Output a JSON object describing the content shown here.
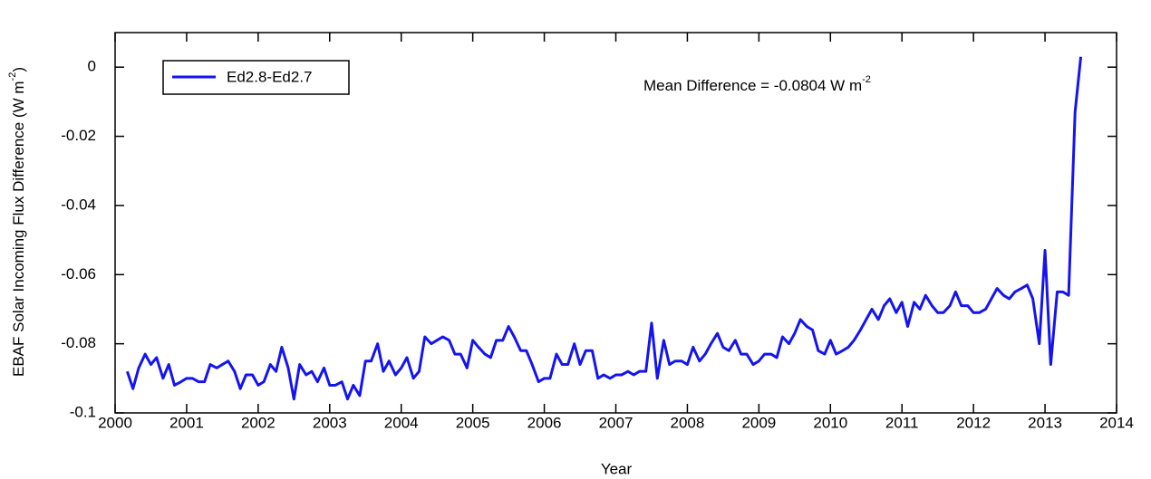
{
  "chart_data": {
    "type": "line",
    "x_label": "Year",
    "y_label": [
      "EBAF Solar Incoming Flux Difference (W m",
      "-2",
      ")"
    ],
    "annotation": [
      "Mean Difference = -0.0804 W m",
      "-2"
    ],
    "xlim": [
      2000,
      2014
    ],
    "xticks": [
      2000,
      2001,
      2002,
      2003,
      2004,
      2005,
      2006,
      2007,
      2008,
      2009,
      2010,
      2011,
      2012,
      2013,
      2014
    ],
    "ylim": [
      -0.1,
      0.01
    ],
    "yticks": [
      -0.1,
      -0.08,
      -0.06,
      -0.04,
      -0.02,
      0
    ],
    "legend": "upper left",
    "x": [
      2000.17,
      2000.25,
      2000.33,
      2000.42,
      2000.5,
      2000.58,
      2000.67,
      2000.75,
      2000.83,
      2000.92,
      2001,
      2001.08,
      2001.17,
      2001.25,
      2001.33,
      2001.42,
      2001.5,
      2001.58,
      2001.67,
      2001.75,
      2001.83,
      2001.92,
      2002,
      2002.08,
      2002.17,
      2002.25,
      2002.33,
      2002.42,
      2002.5,
      2002.58,
      2002.67,
      2002.75,
      2002.83,
      2002.92,
      2003,
      2003.08,
      2003.17,
      2003.25,
      2003.33,
      2003.42,
      2003.5,
      2003.58,
      2003.67,
      2003.75,
      2003.83,
      2003.92,
      2004,
      2004.08,
      2004.17,
      2004.25,
      2004.33,
      2004.42,
      2004.5,
      2004.58,
      2004.67,
      2004.75,
      2004.83,
      2004.92,
      2005,
      2005.08,
      2005.17,
      2005.25,
      2005.33,
      2005.42,
      2005.5,
      2005.58,
      2005.67,
      2005.75,
      2005.83,
      2005.92,
      2006,
      2006.08,
      2006.17,
      2006.25,
      2006.33,
      2006.42,
      2006.5,
      2006.58,
      2006.67,
      2006.75,
      2006.83,
      2006.92,
      2007,
      2007.08,
      2007.17,
      2007.25,
      2007.33,
      2007.42,
      2007.5,
      2007.58,
      2007.67,
      2007.75,
      2007.83,
      2007.92,
      2008,
      2008.08,
      2008.17,
      2008.25,
      2008.33,
      2008.42,
      2008.5,
      2008.58,
      2008.67,
      2008.75,
      2008.83,
      2008.92,
      2009,
      2009.08,
      2009.17,
      2009.25,
      2009.33,
      2009.42,
      2009.5,
      2009.58,
      2009.67,
      2009.75,
      2009.83,
      2009.92,
      2010,
      2010.08,
      2010.17,
      2010.25,
      2010.33,
      2010.42,
      2010.5,
      2010.58,
      2010.67,
      2010.75,
      2010.83,
      2010.92,
      2011,
      2011.08,
      2011.17,
      2011.25,
      2011.33,
      2011.42,
      2011.5,
      2011.58,
      2011.67,
      2011.75,
      2011.83,
      2011.92,
      2012,
      2012.08,
      2012.17,
      2012.25,
      2012.33,
      2012.42,
      2012.5,
      2012.58,
      2012.67,
      2012.75,
      2012.83,
      2012.92,
      2013,
      2013.08,
      2013.17,
      2013.25,
      2013.33,
      2013.42,
      2013.5
    ],
    "series": [
      {
        "name": "Ed2.8-Ed2.7",
        "color": "#1414f0",
        "values": [
          -0.088,
          -0.093,
          -0.087,
          -0.083,
          -0.086,
          -0.084,
          -0.09,
          -0.086,
          -0.092,
          -0.091,
          -0.09,
          -0.09,
          -0.091,
          -0.091,
          -0.086,
          -0.087,
          -0.086,
          -0.085,
          -0.088,
          -0.093,
          -0.089,
          -0.089,
          -0.092,
          -0.091,
          -0.086,
          -0.088,
          -0.081,
          -0.087,
          -0.096,
          -0.086,
          -0.089,
          -0.088,
          -0.091,
          -0.087,
          -0.092,
          -0.092,
          -0.091,
          -0.096,
          -0.092,
          -0.095,
          -0.085,
          -0.085,
          -0.08,
          -0.088,
          -0.085,
          -0.089,
          -0.087,
          -0.084,
          -0.09,
          -0.088,
          -0.078,
          -0.08,
          -0.079,
          -0.078,
          -0.079,
          -0.083,
          -0.083,
          -0.087,
          -0.079,
          -0.081,
          -0.083,
          -0.084,
          -0.079,
          -0.079,
          -0.075,
          -0.078,
          -0.082,
          -0.082,
          -0.086,
          -0.091,
          -0.09,
          -0.09,
          -0.083,
          -0.086,
          -0.086,
          -0.08,
          -0.086,
          -0.082,
          -0.082,
          -0.09,
          -0.089,
          -0.09,
          -0.089,
          -0.089,
          -0.088,
          -0.089,
          -0.088,
          -0.088,
          -0.074,
          -0.09,
          -0.079,
          -0.086,
          -0.085,
          -0.085,
          -0.086,
          -0.081,
          -0.085,
          -0.083,
          -0.08,
          -0.077,
          -0.081,
          -0.082,
          -0.079,
          -0.083,
          -0.083,
          -0.086,
          -0.085,
          -0.083,
          -0.083,
          -0.084,
          -0.078,
          -0.08,
          -0.077,
          -0.073,
          -0.075,
          -0.076,
          -0.082,
          -0.083,
          -0.079,
          -0.083,
          -0.082,
          -0.081,
          -0.079,
          -0.076,
          -0.073,
          -0.07,
          -0.073,
          -0.069,
          -0.067,
          -0.071,
          -0.068,
          -0.075,
          -0.068,
          -0.07,
          -0.066,
          -0.069,
          -0.071,
          -0.071,
          -0.069,
          -0.065,
          -0.069,
          -0.069,
          -0.071,
          -0.071,
          -0.07,
          -0.067,
          -0.064,
          -0.066,
          -0.067,
          -0.065,
          -0.064,
          -0.063,
          -0.067,
          -0.08,
          -0.053,
          -0.086,
          -0.065,
          -0.065,
          -0.066,
          -0.013,
          0.003
        ]
      }
    ]
  }
}
